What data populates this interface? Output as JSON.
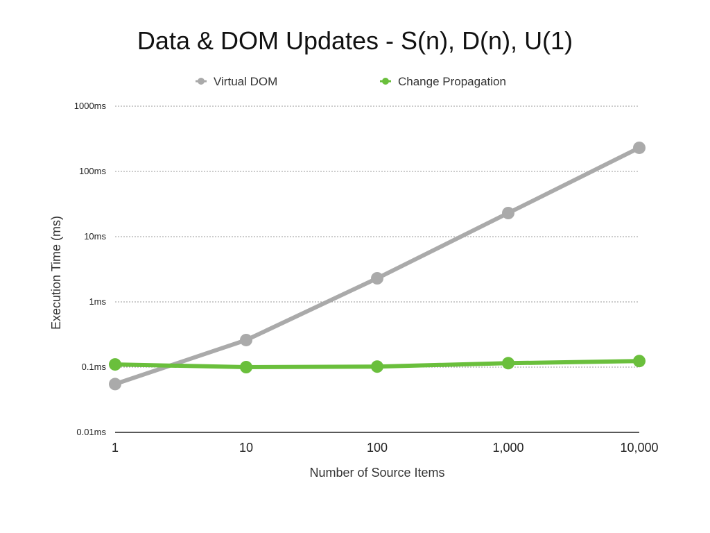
{
  "chart_data": {
    "type": "line",
    "title": "Data & DOM Updates - S(n), D(n), U(1)",
    "xlabel": "Number of Source Items",
    "ylabel": "Execution Time (ms)",
    "x_scale": "log",
    "y_scale": "log",
    "x": [
      1,
      10,
      100,
      1000,
      10000
    ],
    "x_tick_labels": [
      "1",
      "10",
      "100",
      "1,000",
      "10,000"
    ],
    "y_ticks": [
      0.01,
      0.1,
      1,
      10,
      100,
      1000
    ],
    "y_tick_labels": [
      "0.01ms",
      "0.1ms",
      "1ms",
      "10ms",
      "100ms",
      "1000ms"
    ],
    "ylim": [
      0.01,
      1000
    ],
    "xlim": [
      1,
      10000
    ],
    "grid": "horizontal-dotted",
    "legend_position": "top-center",
    "series": [
      {
        "name": "Virtual DOM",
        "color": "#aaaaaa",
        "values": [
          0.055,
          0.26,
          2.3,
          23,
          230
        ]
      },
      {
        "name": "Change Propagation",
        "color": "#6abf3c",
        "values": [
          0.11,
          0.1,
          0.102,
          0.115,
          0.124
        ]
      }
    ]
  }
}
